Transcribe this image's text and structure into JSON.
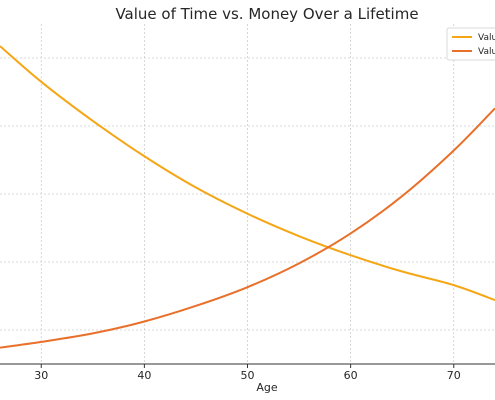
{
  "chart_data": {
    "type": "line",
    "title": "Value of Time vs. Money Over a Lifetime",
    "xlabel": "Age",
    "ylabel": "",
    "xlim": [
      26,
      74
    ],
    "ylim": [
      0,
      1
    ],
    "x_ticks": [
      30,
      40,
      50,
      60,
      70
    ],
    "grid": true,
    "legend_position": "top-right",
    "series": [
      {
        "name": "Valu",
        "color": "#F5A614",
        "x": [
          26,
          30,
          35,
          40,
          45,
          50,
          55,
          60,
          65,
          70,
          74
        ],
        "y": [
          0.935,
          0.83,
          0.715,
          0.611,
          0.519,
          0.442,
          0.376,
          0.32,
          0.272,
          0.232,
          0.188
        ]
      },
      {
        "name": "Valu",
        "color": "#E8702A",
        "x": [
          26,
          30,
          35,
          40,
          45,
          50,
          55,
          60,
          65,
          70,
          74
        ],
        "y": [
          0.048,
          0.065,
          0.09,
          0.125,
          0.171,
          0.226,
          0.296,
          0.384,
          0.494,
          0.628,
          0.752
        ]
      }
    ]
  }
}
